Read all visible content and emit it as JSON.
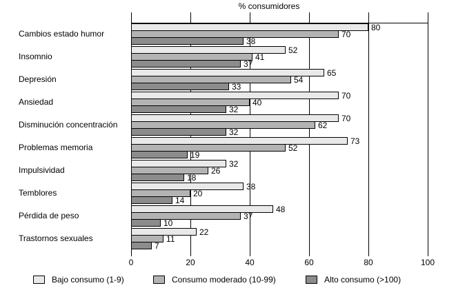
{
  "chart_data": {
    "type": "bar",
    "orientation": "horizontal",
    "title": "% consumidores",
    "categories": [
      "Cambios estado humor",
      "Insomnio",
      "Depresión",
      "Ansiedad",
      "Disminución concentración",
      "Problemas memoria",
      "Impulsividad",
      "Temblores",
      "Pérdida de peso",
      "Trastornos sexuales"
    ],
    "series": [
      {
        "name": "Bajo consumo (1-9)",
        "color": "#e9e9e9",
        "values": [
          80,
          52,
          65,
          70,
          70,
          73,
          32,
          38,
          48,
          22
        ]
      },
      {
        "name": "Consumo moderado (10-99)",
        "color": "#b3b3b3",
        "values": [
          70,
          41,
          54,
          40,
          62,
          52,
          26,
          20,
          37,
          11
        ]
      },
      {
        "name": "Alto consumo (>100)",
        "color": "#8c8c8c",
        "values": [
          38,
          37,
          33,
          32,
          32,
          19,
          18,
          14,
          10,
          7
        ]
      }
    ],
    "x_ticks": [
      0,
      20,
      40,
      60,
      80,
      100
    ],
    "xlim": [
      0,
      100
    ],
    "grid": "vertical-full-height",
    "legend_position": "bottom",
    "colors": {
      "axis": "#000000",
      "text": "#000000",
      "background": "#ffffff"
    }
  }
}
